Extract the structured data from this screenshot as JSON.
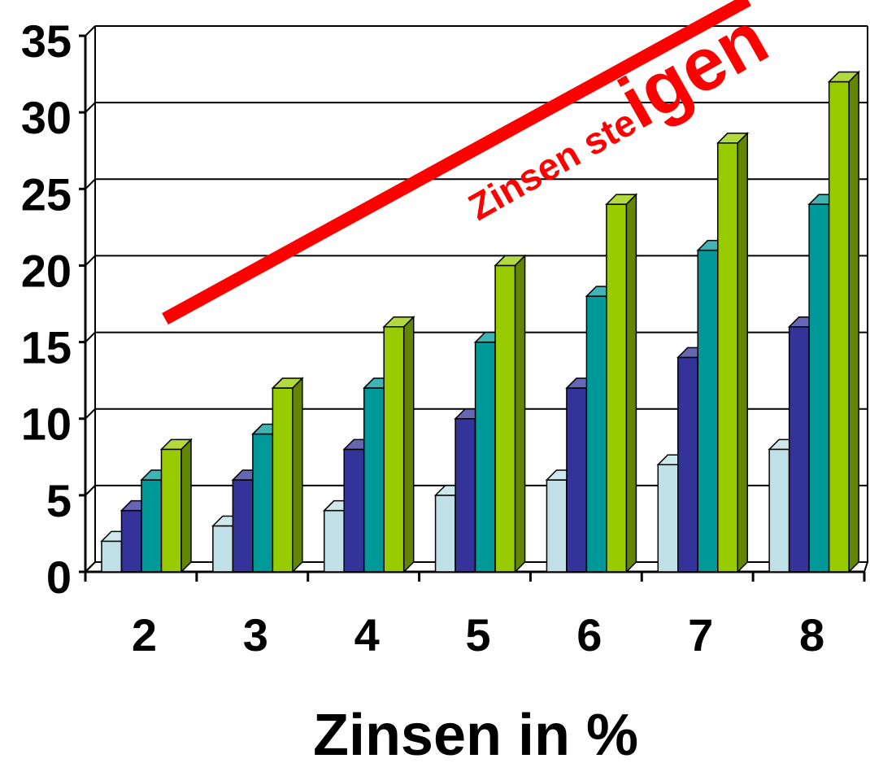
{
  "chart_data": {
    "type": "bar",
    "variant": "3d-clustered-column",
    "categories": [
      "2",
      "3",
      "4",
      "5",
      "6",
      "7",
      "8"
    ],
    "series": [
      {
        "values": [
          2,
          3,
          4,
          5,
          6,
          7,
          8
        ],
        "color": "#BEE0E6"
      },
      {
        "values": [
          4,
          6,
          8,
          10,
          12,
          14,
          16
        ],
        "color": "#333399"
      },
      {
        "values": [
          6,
          9,
          12,
          15,
          18,
          21,
          24
        ],
        "color": "#009999"
      },
      {
        "values": [
          8,
          12,
          16,
          20,
          24,
          28,
          32
        ],
        "color": "#99CC00"
      }
    ],
    "xlabel": "Zinsen in %",
    "ylabel": "",
    "ylim": [
      0,
      35
    ],
    "yticks": [
      0,
      5,
      10,
      15,
      20,
      25,
      30,
      35
    ],
    "grid": true,
    "legend": "none",
    "annotation": {
      "text_small": "Zinsen ste",
      "text_large": "igen",
      "color": "#FF0000",
      "shape": "rising diagonal arrow line"
    }
  }
}
